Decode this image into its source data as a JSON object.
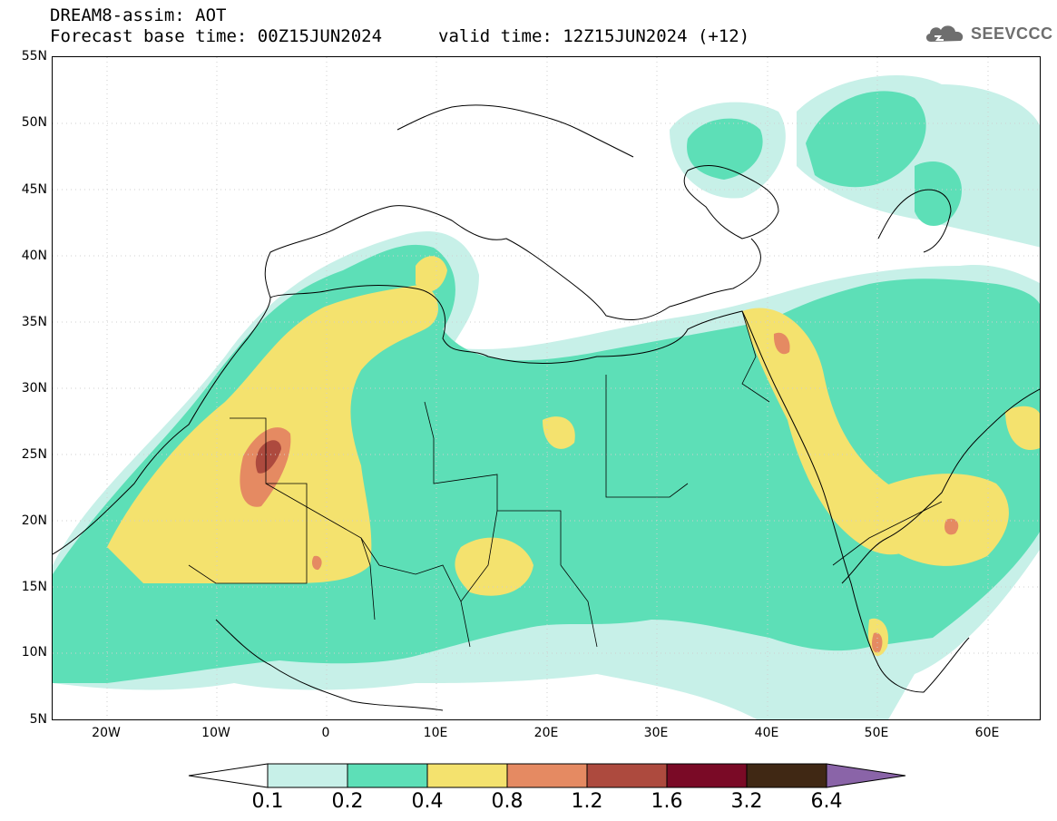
{
  "header": {
    "title": "DREAM8-assim: AOT",
    "base_time": "Forecast base time: 00Z15JUN2024",
    "valid_time": "valid time: 12Z15JUN2024 (+12)",
    "logo_text": "SEEVCCC"
  },
  "map": {
    "lat_labels": [
      "55N",
      "50N",
      "45N",
      "40N",
      "35N",
      "30N",
      "25N",
      "20N",
      "15N",
      "10N",
      "5N"
    ],
    "lon_labels": [
      "20W",
      "10W",
      "0",
      "10E",
      "20E",
      "30E",
      "40E",
      "50E",
      "60E"
    ]
  },
  "colorbar": {
    "levels": [
      "0.1",
      "0.2",
      "0.4",
      "0.8",
      "1.2",
      "1.6",
      "3.2",
      "6.4"
    ],
    "colors": [
      "#ffffff",
      "#c7f0e8",
      "#5ddfb7",
      "#f4e26e",
      "#e58a62",
      "#ad4a3e",
      "#7a0a26",
      "#402814",
      "#8a64a8"
    ]
  }
}
